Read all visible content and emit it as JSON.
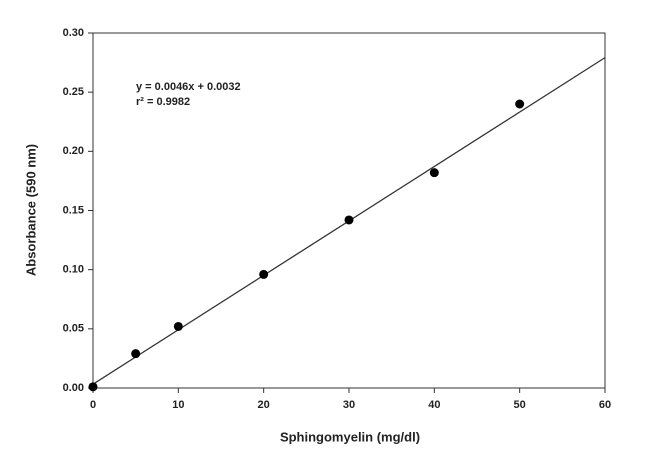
{
  "chart_data": {
    "type": "scatter",
    "xlabel": "Sphingomyelin (mg/dl)",
    "ylabel": "Absorbance (590 nm)",
    "annotations": [
      "y = 0.0046x + 0.0032",
      "r² = 0.9982"
    ],
    "x": [
      0,
      5,
      10,
      20,
      30,
      40,
      50
    ],
    "values": [
      0.001,
      0.029,
      0.052,
      0.096,
      0.142,
      0.182,
      0.24
    ],
    "color": "#000000",
    "fit": {
      "slope": 0.0046,
      "intercept": 0.0032
    },
    "xlim": [
      0,
      60
    ],
    "ylim": [
      0,
      0.3
    ],
    "xticks": [
      0,
      10,
      20,
      30,
      40,
      50,
      60
    ],
    "yticks": [
      {
        "value": 0,
        "label": "0.00"
      },
      0.05,
      {
        "value": 0.1,
        "label": "0.10"
      },
      0.15,
      {
        "value": 0.2,
        "label": "0.20"
      },
      0.25,
      {
        "value": 0.3,
        "label": "0.30"
      }
    ],
    "grid": false
  }
}
